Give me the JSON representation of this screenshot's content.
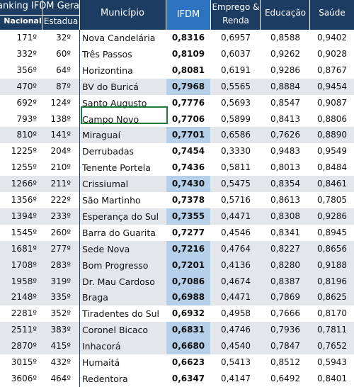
{
  "header": {
    "ranking": "anking IFDM Gera",
    "nacional": "Nacional",
    "estadual": "Estadua",
    "municipio": "Município",
    "ifdm": "IFDM",
    "emprego": "Emprego & Renda",
    "educacao": "Educação",
    "saude": "Saúde"
  },
  "colors": {
    "header_bg": "#1c3c62",
    "ifdm_header_bg": "#2c74c0",
    "highlight": "#b7d0ea",
    "row_alt": "#e3e6eb",
    "selection_border": "#1e7b3a"
  },
  "rows": [
    {
      "nac": "171º",
      "est": "32º",
      "mun": "Nova Candelária",
      "ifdm": "0,8316",
      "emp": "0,6957",
      "edu": "0,8588",
      "sau": "0,9402",
      "alt": false,
      "hl": false
    },
    {
      "nac": "332º",
      "est": "60º",
      "mun": "Três Passos",
      "ifdm": "0,8109",
      "emp": "0,6037",
      "edu": "0,9262",
      "sau": "0,9028",
      "alt": false,
      "hl": false
    },
    {
      "nac": "356º",
      "est": "64º",
      "mun": "Horizontina",
      "ifdm": "0,8081",
      "emp": "0,6191",
      "edu": "0,9286",
      "sau": "0,8767",
      "alt": false,
      "hl": false
    },
    {
      "nac": "470º",
      "est": "87º",
      "mun": "BV do Buricá",
      "ifdm": "0,7968",
      "emp": "0,5565",
      "edu": "0,8884",
      "sau": "0,9454",
      "alt": true,
      "hl": true
    },
    {
      "nac": "692º",
      "est": "124º",
      "mun": "Santo Augusto",
      "ifdm": "0,7776",
      "emp": "0,5693",
      "edu": "0,8547",
      "sau": "0,9087",
      "alt": false,
      "hl": false
    },
    {
      "nac": "793º",
      "est": "138º",
      "mun": "Campo Novo",
      "ifdm": "0,7706",
      "emp": "0,5899",
      "edu": "0,8413",
      "sau": "0,8806",
      "alt": false,
      "hl": false
    },
    {
      "nac": "810º",
      "est": "141º",
      "mun": "Miraguaí",
      "ifdm": "0,7701",
      "emp": "0,6586",
      "edu": "0,7626",
      "sau": "0,8890",
      "alt": true,
      "hl": true
    },
    {
      "nac": "1225º",
      "est": "204º",
      "mun": "Derrubadas",
      "ifdm": "0,7454",
      "emp": "0,3330",
      "edu": "0,9483",
      "sau": "0,9549",
      "alt": false,
      "hl": false
    },
    {
      "nac": "1255º",
      "est": "210º",
      "mun": "Tenente Portela",
      "ifdm": "0,7436",
      "emp": "0,5811",
      "edu": "0,8013",
      "sau": "0,8484",
      "alt": false,
      "hl": false
    },
    {
      "nac": "1266º",
      "est": "211º",
      "mun": "Crissiumal",
      "ifdm": "0,7430",
      "emp": "0,5475",
      "edu": "0,8354",
      "sau": "0,8461",
      "alt": true,
      "hl": true
    },
    {
      "nac": "1356º",
      "est": "222º",
      "mun": "São Martinho",
      "ifdm": "0,7378",
      "emp": "0,5716",
      "edu": "0,8613",
      "sau": "0,7805",
      "alt": false,
      "hl": false
    },
    {
      "nac": "1394º",
      "est": "233º",
      "mun": "Esperança do Sul",
      "ifdm": "0,7355",
      "emp": "0,4471",
      "edu": "0,8308",
      "sau": "0,9286",
      "alt": true,
      "hl": true
    },
    {
      "nac": "1545º",
      "est": "260º",
      "mun": "Barra do Guarita",
      "ifdm": "0,7277",
      "emp": "0,4546",
      "edu": "0,8341",
      "sau": "0,8945",
      "alt": false,
      "hl": false
    },
    {
      "nac": "1681º",
      "est": "277º",
      "mun": "Sede Nova",
      "ifdm": "0,7216",
      "emp": "0,4764",
      "edu": "0,8227",
      "sau": "0,8656",
      "alt": true,
      "hl": true
    },
    {
      "nac": "1708º",
      "est": "283º",
      "mun": "Bom Progresso",
      "ifdm": "0,7201",
      "emp": "0,4136",
      "edu": "0,8280",
      "sau": "0,9188",
      "alt": true,
      "hl": true
    },
    {
      "nac": "1958º",
      "est": "319º",
      "mun": "Dr. Mau Cardoso",
      "ifdm": "0,7086",
      "emp": "0,4674",
      "edu": "0,8387",
      "sau": "0,8196",
      "alt": true,
      "hl": true
    },
    {
      "nac": "2148º",
      "est": "335º",
      "mun": "Braga",
      "ifdm": "0,6988",
      "emp": "0,4471",
      "edu": "0,7869",
      "sau": "0,8625",
      "alt": true,
      "hl": true
    },
    {
      "nac": "2281º",
      "est": "352º",
      "mun": "Tiradentes do Sul",
      "ifdm": "0,6932",
      "emp": "0,4958",
      "edu": "0,7666",
      "sau": "0,8170",
      "alt": false,
      "hl": false
    },
    {
      "nac": "2511º",
      "est": "383º",
      "mun": "Coronel Bicaco",
      "ifdm": "0,6831",
      "emp": "0,4746",
      "edu": "0,7936",
      "sau": "0,7811",
      "alt": true,
      "hl": true
    },
    {
      "nac": "2870º",
      "est": "415º",
      "mun": "Inhacorá",
      "ifdm": "0,6680",
      "emp": "0,4540",
      "edu": "0,7847",
      "sau": "0,7652",
      "alt": true,
      "hl": true
    },
    {
      "nac": "3015º",
      "est": "432º",
      "mun": "Humaitá",
      "ifdm": "0,6623",
      "emp": "0,5413",
      "edu": "0,8512",
      "sau": "0,5943",
      "alt": false,
      "hl": false
    },
    {
      "nac": "3606º",
      "est": "464º",
      "mun": "Redentora",
      "ifdm": "0,6347",
      "emp": "0,4147",
      "edu": "0,6492",
      "sau": "0,8401",
      "alt": false,
      "hl": false
    }
  ]
}
